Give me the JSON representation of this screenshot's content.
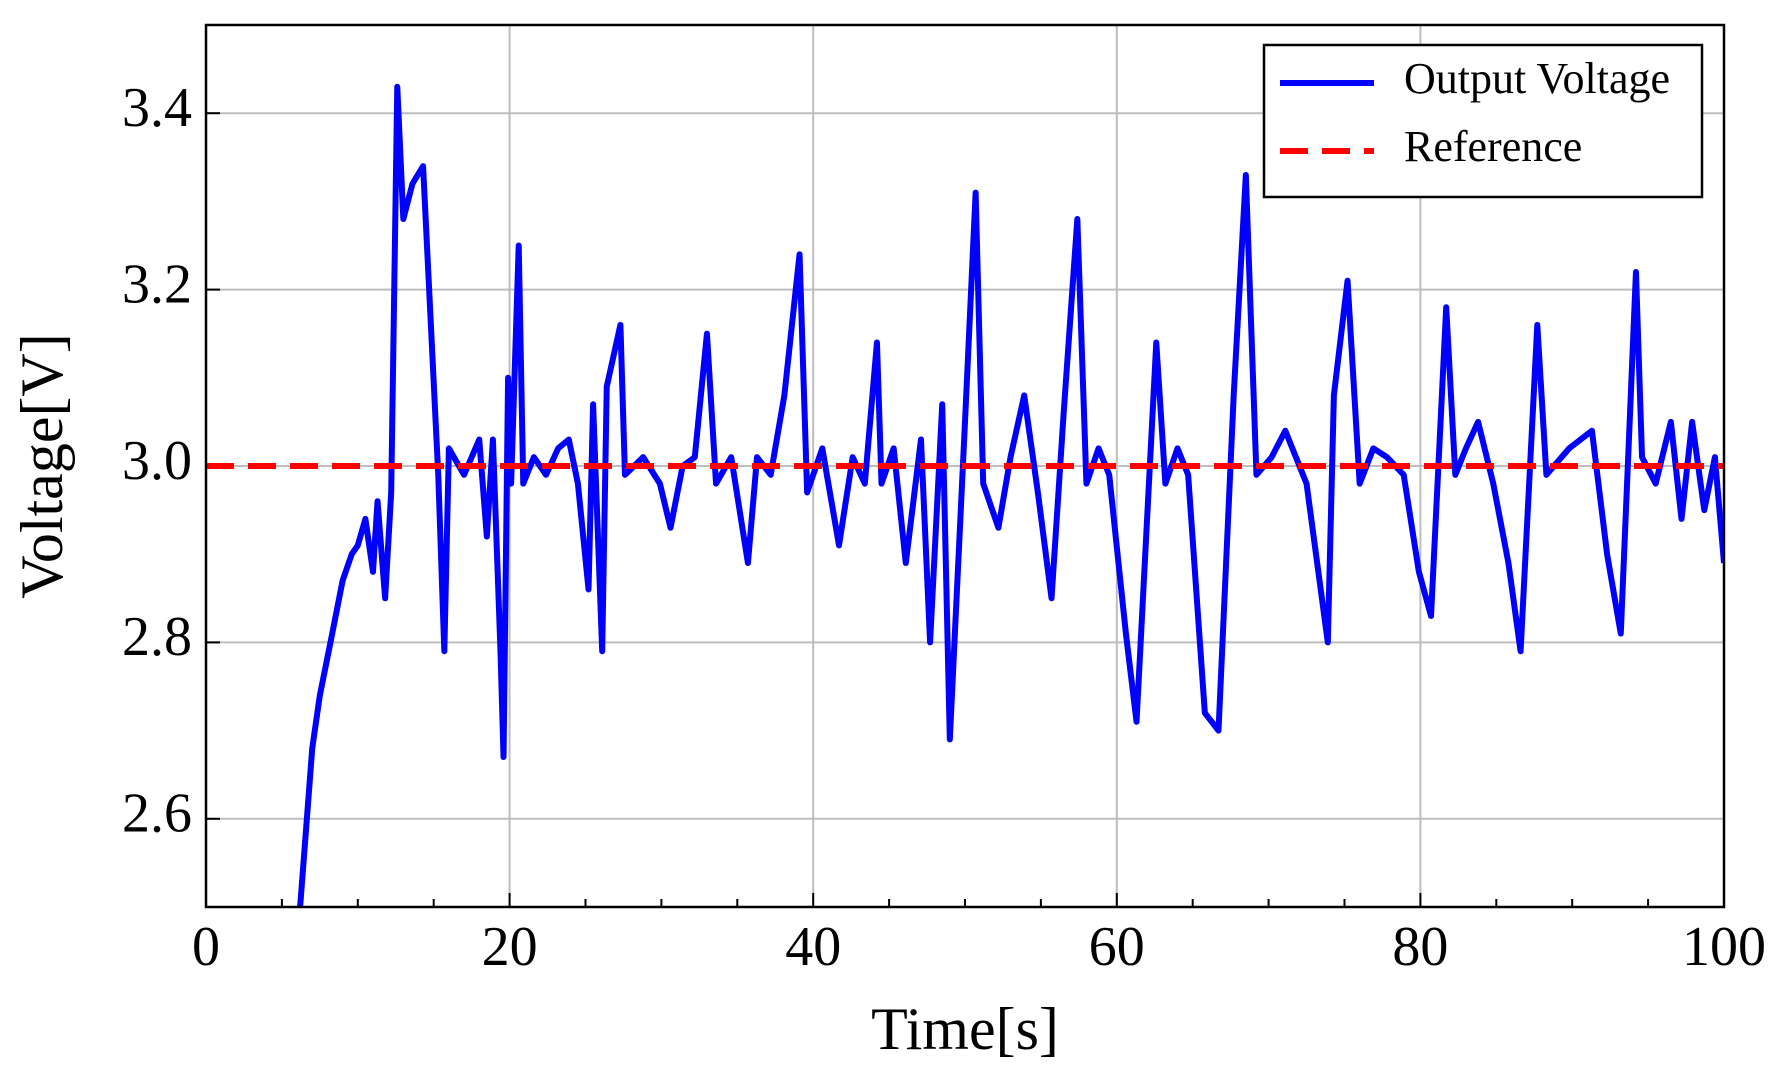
{
  "chart_data": {
    "type": "line",
    "xlabel": "Time[s]",
    "ylabel": "Voltage[V]",
    "xlim": [
      0,
      100
    ],
    "ylim": [
      2.5,
      3.5
    ],
    "xticks": [
      0,
      20,
      40,
      60,
      80,
      100
    ],
    "xminorticks": [
      5,
      10,
      15,
      25,
      30,
      35,
      45,
      50,
      55,
      65,
      70,
      75,
      85,
      90,
      95
    ],
    "yticks": [
      2.6,
      2.8,
      {
        "value": 3,
        "label": "3.0"
      },
      3.2,
      3.4
    ],
    "grid": true,
    "legend": "upper right",
    "series": [
      {
        "name": "Output Voltage",
        "color": "#0000ff",
        "linestyle": "solid",
        "x": [
          6.2,
          7.0,
          7.5,
          8.2,
          9.0,
          9.6,
          10.0,
          10.5,
          11.0,
          11.3,
          11.8,
          12.2,
          12.6,
          13.0,
          13.6,
          14.3,
          15.3,
          15.7,
          16.0,
          17.0,
          18.0,
          18.5,
          18.9,
          19.4,
          19.6,
          19.9,
          20.1,
          20.6,
          20.9,
          21.6,
          22.4,
          23.2,
          23.9,
          24.5,
          25.2,
          25.5,
          26.1,
          26.4,
          27.3,
          27.6,
          28.8,
          29.9,
          30.6,
          31.4,
          32.2,
          33.0,
          33.6,
          34.6,
          35.7,
          36.3,
          37.2,
          38.1,
          39.1,
          39.6,
          40.6,
          41.7,
          42.6,
          43.4,
          44.2,
          44.5,
          45.3,
          46.1,
          47.1,
          47.7,
          48.5,
          49.0,
          50.0,
          50.7,
          51.2,
          52.2,
          53.0,
          53.9,
          54.8,
          55.7,
          56.5,
          57.4,
          58.0,
          58.8,
          59.5,
          60.6,
          61.3,
          62.6,
          63.2,
          64.0,
          64.7,
          65.8,
          66.7,
          67.7,
          68.5,
          69.2,
          70.2,
          71.1,
          72.5,
          73.9,
          74.3,
          75.2,
          76.0,
          76.9,
          77.8,
          78.9,
          79.9,
          80.7,
          81.7,
          82.3,
          83.0,
          83.8,
          84.8,
          85.8,
          86.6,
          87.7,
          88.3,
          89.8,
          91.3,
          92.3,
          93.2,
          94.2,
          94.6,
          95.5,
          96.5,
          97.2,
          97.9,
          98.7,
          99.4,
          100
        ],
        "values": [
          2.5,
          2.68,
          2.74,
          2.8,
          2.87,
          2.9,
          2.91,
          2.94,
          2.88,
          2.96,
          2.85,
          2.97,
          3.43,
          3.28,
          3.32,
          3.34,
          2.99,
          2.79,
          3.02,
          2.99,
          3.03,
          2.92,
          3.03,
          2.79,
          2.67,
          3.1,
          2.98,
          3.25,
          2.98,
          3.01,
          2.99,
          3.02,
          3.03,
          2.98,
          2.86,
          3.07,
          2.79,
          3.09,
          3.16,
          2.99,
          3.01,
          2.98,
          2.93,
          3.0,
          3.01,
          3.15,
          2.98,
          3.01,
          2.89,
          3.01,
          2.99,
          3.08,
          3.24,
          2.97,
          3.02,
          2.91,
          3.01,
          2.98,
          3.14,
          2.98,
          3.02,
          2.89,
          3.03,
          2.8,
          3.07,
          2.69,
          3.05,
          3.31,
          2.98,
          2.93,
          3.01,
          3.08,
          2.97,
          2.85,
          3.06,
          3.28,
          2.98,
          3.02,
          2.99,
          2.81,
          2.71,
          3.14,
          2.98,
          3.02,
          2.99,
          2.72,
          2.7,
          3.08,
          3.33,
          2.99,
          3.01,
          3.04,
          2.98,
          2.8,
          3.08,
          3.21,
          2.98,
          3.02,
          3.01,
          2.99,
          2.88,
          2.83,
          3.18,
          2.99,
          3.02,
          3.05,
          2.98,
          2.89,
          2.79,
          3.16,
          2.99,
          3.02,
          3.04,
          2.9,
          2.81,
          3.22,
          3.01,
          2.98,
          3.05,
          2.94,
          3.05,
          2.95,
          3.01,
          2.89
        ]
      },
      {
        "name": "Reference",
        "color": "#ff0000",
        "linestyle": "dashed",
        "x": [
          0,
          100
        ],
        "values": [
          3,
          3
        ]
      }
    ]
  }
}
